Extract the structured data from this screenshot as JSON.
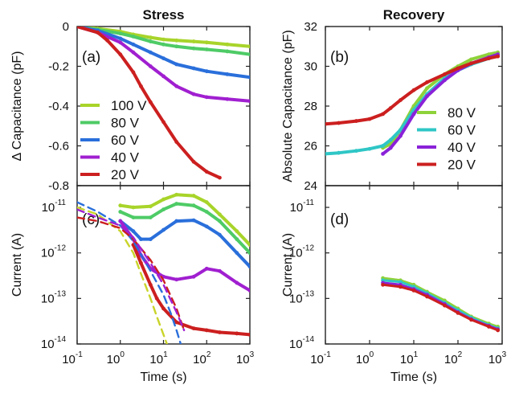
{
  "chart_data": [
    {
      "type": "line",
      "title": "Stress",
      "panel": "(a)",
      "ylabel": "Δ Capacitance (pF)",
      "xlabel": "",
      "xscale": "log",
      "xlim": [
        0.1,
        1000
      ],
      "ylim": [
        -0.8,
        0
      ],
      "xticks": [],
      "yticks": [
        "0",
        "-0.2",
        "-0.4",
        "-0.6",
        "-0.8"
      ],
      "legend": "lower-left",
      "series": [
        {
          "name": "100 V",
          "color": "#a8d42a",
          "x": [
            0.1,
            0.3,
            1,
            2,
            5,
            10,
            20,
            50,
            100,
            300,
            1000
          ],
          "y": [
            0,
            -0.01,
            -0.025,
            -0.04,
            -0.055,
            -0.065,
            -0.07,
            -0.075,
            -0.08,
            -0.09,
            -0.1
          ]
        },
        {
          "name": "80 V",
          "color": "#4ecb66",
          "x": [
            0.1,
            0.3,
            1,
            2,
            5,
            10,
            20,
            50,
            100,
            300,
            1000
          ],
          "y": [
            0,
            -0.015,
            -0.035,
            -0.05,
            -0.075,
            -0.09,
            -0.1,
            -0.11,
            -0.115,
            -0.125,
            -0.14
          ]
        },
        {
          "name": "60 V",
          "color": "#2a6fdb",
          "x": [
            0.1,
            0.3,
            1,
            2,
            5,
            10,
            20,
            50,
            100,
            300,
            1000
          ],
          "y": [
            0,
            -0.02,
            -0.06,
            -0.09,
            -0.13,
            -0.16,
            -0.19,
            -0.21,
            -0.225,
            -0.24,
            -0.255
          ]
        },
        {
          "name": "40 V",
          "color": "#a01fd0",
          "x": [
            0.1,
            0.3,
            1,
            2,
            5,
            10,
            20,
            50,
            100,
            300,
            1000
          ],
          "y": [
            0,
            -0.03,
            -0.08,
            -0.13,
            -0.2,
            -0.25,
            -0.3,
            -0.34,
            -0.355,
            -0.365,
            -0.375
          ]
        },
        {
          "name": "20 V",
          "color": "#cc1f1f",
          "x": [
            0.1,
            0.3,
            0.5,
            1,
            2,
            3,
            5,
            10,
            20,
            50,
            100,
            200
          ],
          "y": [
            0,
            -0.03,
            -0.07,
            -0.14,
            -0.23,
            -0.3,
            -0.38,
            -0.48,
            -0.58,
            -0.68,
            -0.73,
            -0.76
          ]
        }
      ]
    },
    {
      "type": "line",
      "title": "Recovery",
      "panel": "(b)",
      "ylabel": "Absolute Capacitance (pF)",
      "xlabel": "",
      "xscale": "log",
      "xlim": [
        0.1,
        1000
      ],
      "ylim": [
        24,
        32
      ],
      "xticks": [],
      "yticks": [
        "32",
        "30",
        "28",
        "26",
        "24"
      ],
      "legend": "lower-right",
      "series": [
        {
          "name": "80 V",
          "color": "#8ed23a",
          "x": [
            2,
            3,
            5,
            10,
            20,
            50,
            100,
            200,
            500,
            800
          ],
          "y": [
            25.9,
            26.1,
            26.8,
            28.0,
            28.9,
            29.6,
            30.0,
            30.35,
            30.6,
            30.7
          ]
        },
        {
          "name": "60 V",
          "color": "#2fc6c6",
          "x": [
            0.1,
            0.2,
            0.5,
            1,
            2,
            3,
            5,
            10,
            20,
            50,
            100,
            200,
            500,
            800
          ],
          "y": [
            25.6,
            25.65,
            25.75,
            25.85,
            26.0,
            26.3,
            26.8,
            27.8,
            28.6,
            29.4,
            29.8,
            30.1,
            30.4,
            30.55
          ]
        },
        {
          "name": "40 V",
          "color": "#8a22d8",
          "x": [
            2,
            3,
            5,
            10,
            20,
            50,
            100,
            200,
            500,
            800
          ],
          "y": [
            25.6,
            25.9,
            26.5,
            27.6,
            28.5,
            29.3,
            29.8,
            30.15,
            30.45,
            30.6
          ]
        },
        {
          "name": "20 V",
          "color": "#cc1f1f",
          "x": [
            0.1,
            0.2,
            0.5,
            1,
            2,
            3,
            5,
            10,
            20,
            50,
            100,
            200,
            500,
            800
          ],
          "y": [
            27.1,
            27.15,
            27.25,
            27.35,
            27.6,
            27.9,
            28.3,
            28.8,
            29.2,
            29.6,
            29.9,
            30.15,
            30.4,
            30.5
          ]
        }
      ]
    },
    {
      "type": "line",
      "panel": "(c)",
      "ylabel": "Current (A)",
      "xlabel": "Time (s)",
      "xscale": "log",
      "yscale": "log",
      "xlim": [
        0.1,
        1000
      ],
      "ylim": [
        1e-14,
        3e-11
      ],
      "xticks": [
        "-1",
        "0",
        "1",
        "2",
        "3"
      ],
      "yticks": [
        "-11",
        "-12",
        "-13",
        "-14"
      ],
      "series": [
        {
          "name": "100 V",
          "color": "#a8d42a",
          "style": "solid",
          "x": [
            1,
            2,
            5,
            10,
            20,
            50,
            100,
            200,
            500,
            1000
          ],
          "y": [
            1.1e-11,
            1e-11,
            1.05e-11,
            1.5e-11,
            1.9e-11,
            1.8e-11,
            1.3e-11,
            7e-12,
            3e-12,
            1.5e-12
          ]
        },
        {
          "name": "80 V",
          "color": "#4ecb66",
          "style": "solid",
          "x": [
            1,
            2,
            5,
            10,
            20,
            50,
            100,
            200,
            500,
            1000
          ],
          "y": [
            8e-12,
            6e-12,
            6e-12,
            9e-12,
            1.2e-11,
            1.1e-11,
            8e-12,
            5e-12,
            2e-12,
            1e-12
          ]
        },
        {
          "name": "60 V",
          "color": "#2a6fdb",
          "style": "solid",
          "x": [
            1,
            2,
            3,
            5,
            10,
            20,
            50,
            100,
            200,
            500,
            1000
          ],
          "y": [
            5e-12,
            3e-12,
            2e-12,
            2e-12,
            3.2e-12,
            5e-12,
            5.2e-12,
            3.8e-12,
            2.5e-12,
            1e-12,
            5e-13
          ]
        },
        {
          "name": "40 V",
          "color": "#a01fd0",
          "style": "solid",
          "x": [
            1,
            2,
            3,
            5,
            10,
            20,
            50,
            100,
            200,
            500,
            1000
          ],
          "y": [
            5e-12,
            2e-12,
            9e-13,
            4.5e-13,
            3e-13,
            2.6e-13,
            3e-13,
            4.5e-13,
            4e-13,
            2.2e-13,
            1.5e-13
          ]
        },
        {
          "name": "20 V",
          "color": "#cc1f1f",
          "style": "solid",
          "x": [
            2,
            3,
            5,
            7,
            10,
            20,
            50,
            100,
            200,
            500,
            1000
          ],
          "y": [
            1.5e-12,
            6e-13,
            2e-13,
            1e-13,
            6e-14,
            3e-14,
            2.2e-14,
            2e-14,
            1.8e-14,
            1.7e-14,
            1.6e-14
          ]
        },
        {
          "name": "100 V fit",
          "color": "#c9d42a",
          "style": "dashed",
          "x": [
            0.1,
            0.3,
            1,
            2,
            3,
            5,
            7,
            10,
            12
          ],
          "y": [
            1e-11,
            7e-12,
            3e-12,
            1e-12,
            3.5e-13,
            1e-13,
            4e-14,
            1.6e-14,
            1e-14
          ]
        },
        {
          "name": "60 V fit",
          "color": "#2a6fdb",
          "style": "dashed",
          "x": [
            0.1,
            0.3,
            1,
            2,
            5,
            10,
            15,
            20,
            25
          ],
          "y": [
            1.3e-11,
            8e-12,
            4e-12,
            1.8e-12,
            4e-13,
            1.2e-13,
            4.5e-14,
            2e-14,
            1e-14
          ]
        },
        {
          "name": "20 V fit",
          "color": "#cc1f1f",
          "style": "dashed",
          "x": [
            0.1,
            0.3,
            1,
            2,
            5,
            10,
            20,
            30
          ],
          "y": [
            6e-12,
            5e-12,
            3.5e-12,
            2e-12,
            7e-13,
            2.5e-13,
            6e-14,
            2e-14
          ]
        },
        {
          "name": "40 V fit",
          "color": "#a01fd0",
          "style": "dashed",
          "x": [
            0.1,
            0.3,
            1,
            2,
            5,
            10,
            20,
            30
          ],
          "y": [
            9e-12,
            6e-12,
            4e-12,
            2.2e-12,
            6e-13,
            2e-13,
            5e-14,
            2e-14
          ]
        }
      ]
    },
    {
      "type": "scatter",
      "panel": "(d)",
      "ylabel": "Current (A)",
      "xlabel": "Time (s)",
      "xscale": "log",
      "yscale": "log",
      "xlim": [
        0.1,
        1000
      ],
      "ylim": [
        1e-14,
        3e-11
      ],
      "xticks": [
        "-1",
        "0",
        "1",
        "2",
        "3"
      ],
      "yticks": [
        "-11",
        "-12",
        "-13",
        "-14"
      ],
      "series": [
        {
          "name": "80 V",
          "color": "#8ed23a",
          "x": [
            2,
            5,
            10,
            20,
            50,
            100,
            200,
            500,
            800
          ],
          "y": [
            2.8e-13,
            2.5e-13,
            2e-13,
            1.4e-13,
            9e-14,
            6e-14,
            4e-14,
            2.8e-14,
            2.4e-14
          ]
        },
        {
          "name": "60 V",
          "color": "#2fc6c6",
          "x": [
            2,
            5,
            10,
            20,
            50,
            100,
            200,
            500,
            800
          ],
          "y": [
            2.5e-13,
            2.3e-13,
            1.8e-13,
            1.3e-13,
            8e-14,
            5.5e-14,
            3.8e-14,
            2.6e-14,
            2.2e-14
          ]
        },
        {
          "name": "40 V",
          "color": "#8a22d8",
          "x": [
            2,
            5,
            10,
            20,
            50,
            100,
            200,
            500,
            800
          ],
          "y": [
            2.2e-13,
            2e-13,
            1.6e-13,
            1.2e-13,
            7.5e-14,
            5e-14,
            3.5e-14,
            2.5e-14,
            2.1e-14
          ]
        },
        {
          "name": "20 V",
          "color": "#cc1f1f",
          "x": [
            2,
            5,
            10,
            20,
            50,
            100,
            200,
            500,
            800
          ],
          "y": [
            2e-13,
            1.8e-13,
            1.5e-13,
            1.1e-13,
            7e-14,
            4.8e-14,
            3.4e-14,
            2.4e-14,
            2e-14
          ]
        }
      ]
    }
  ]
}
